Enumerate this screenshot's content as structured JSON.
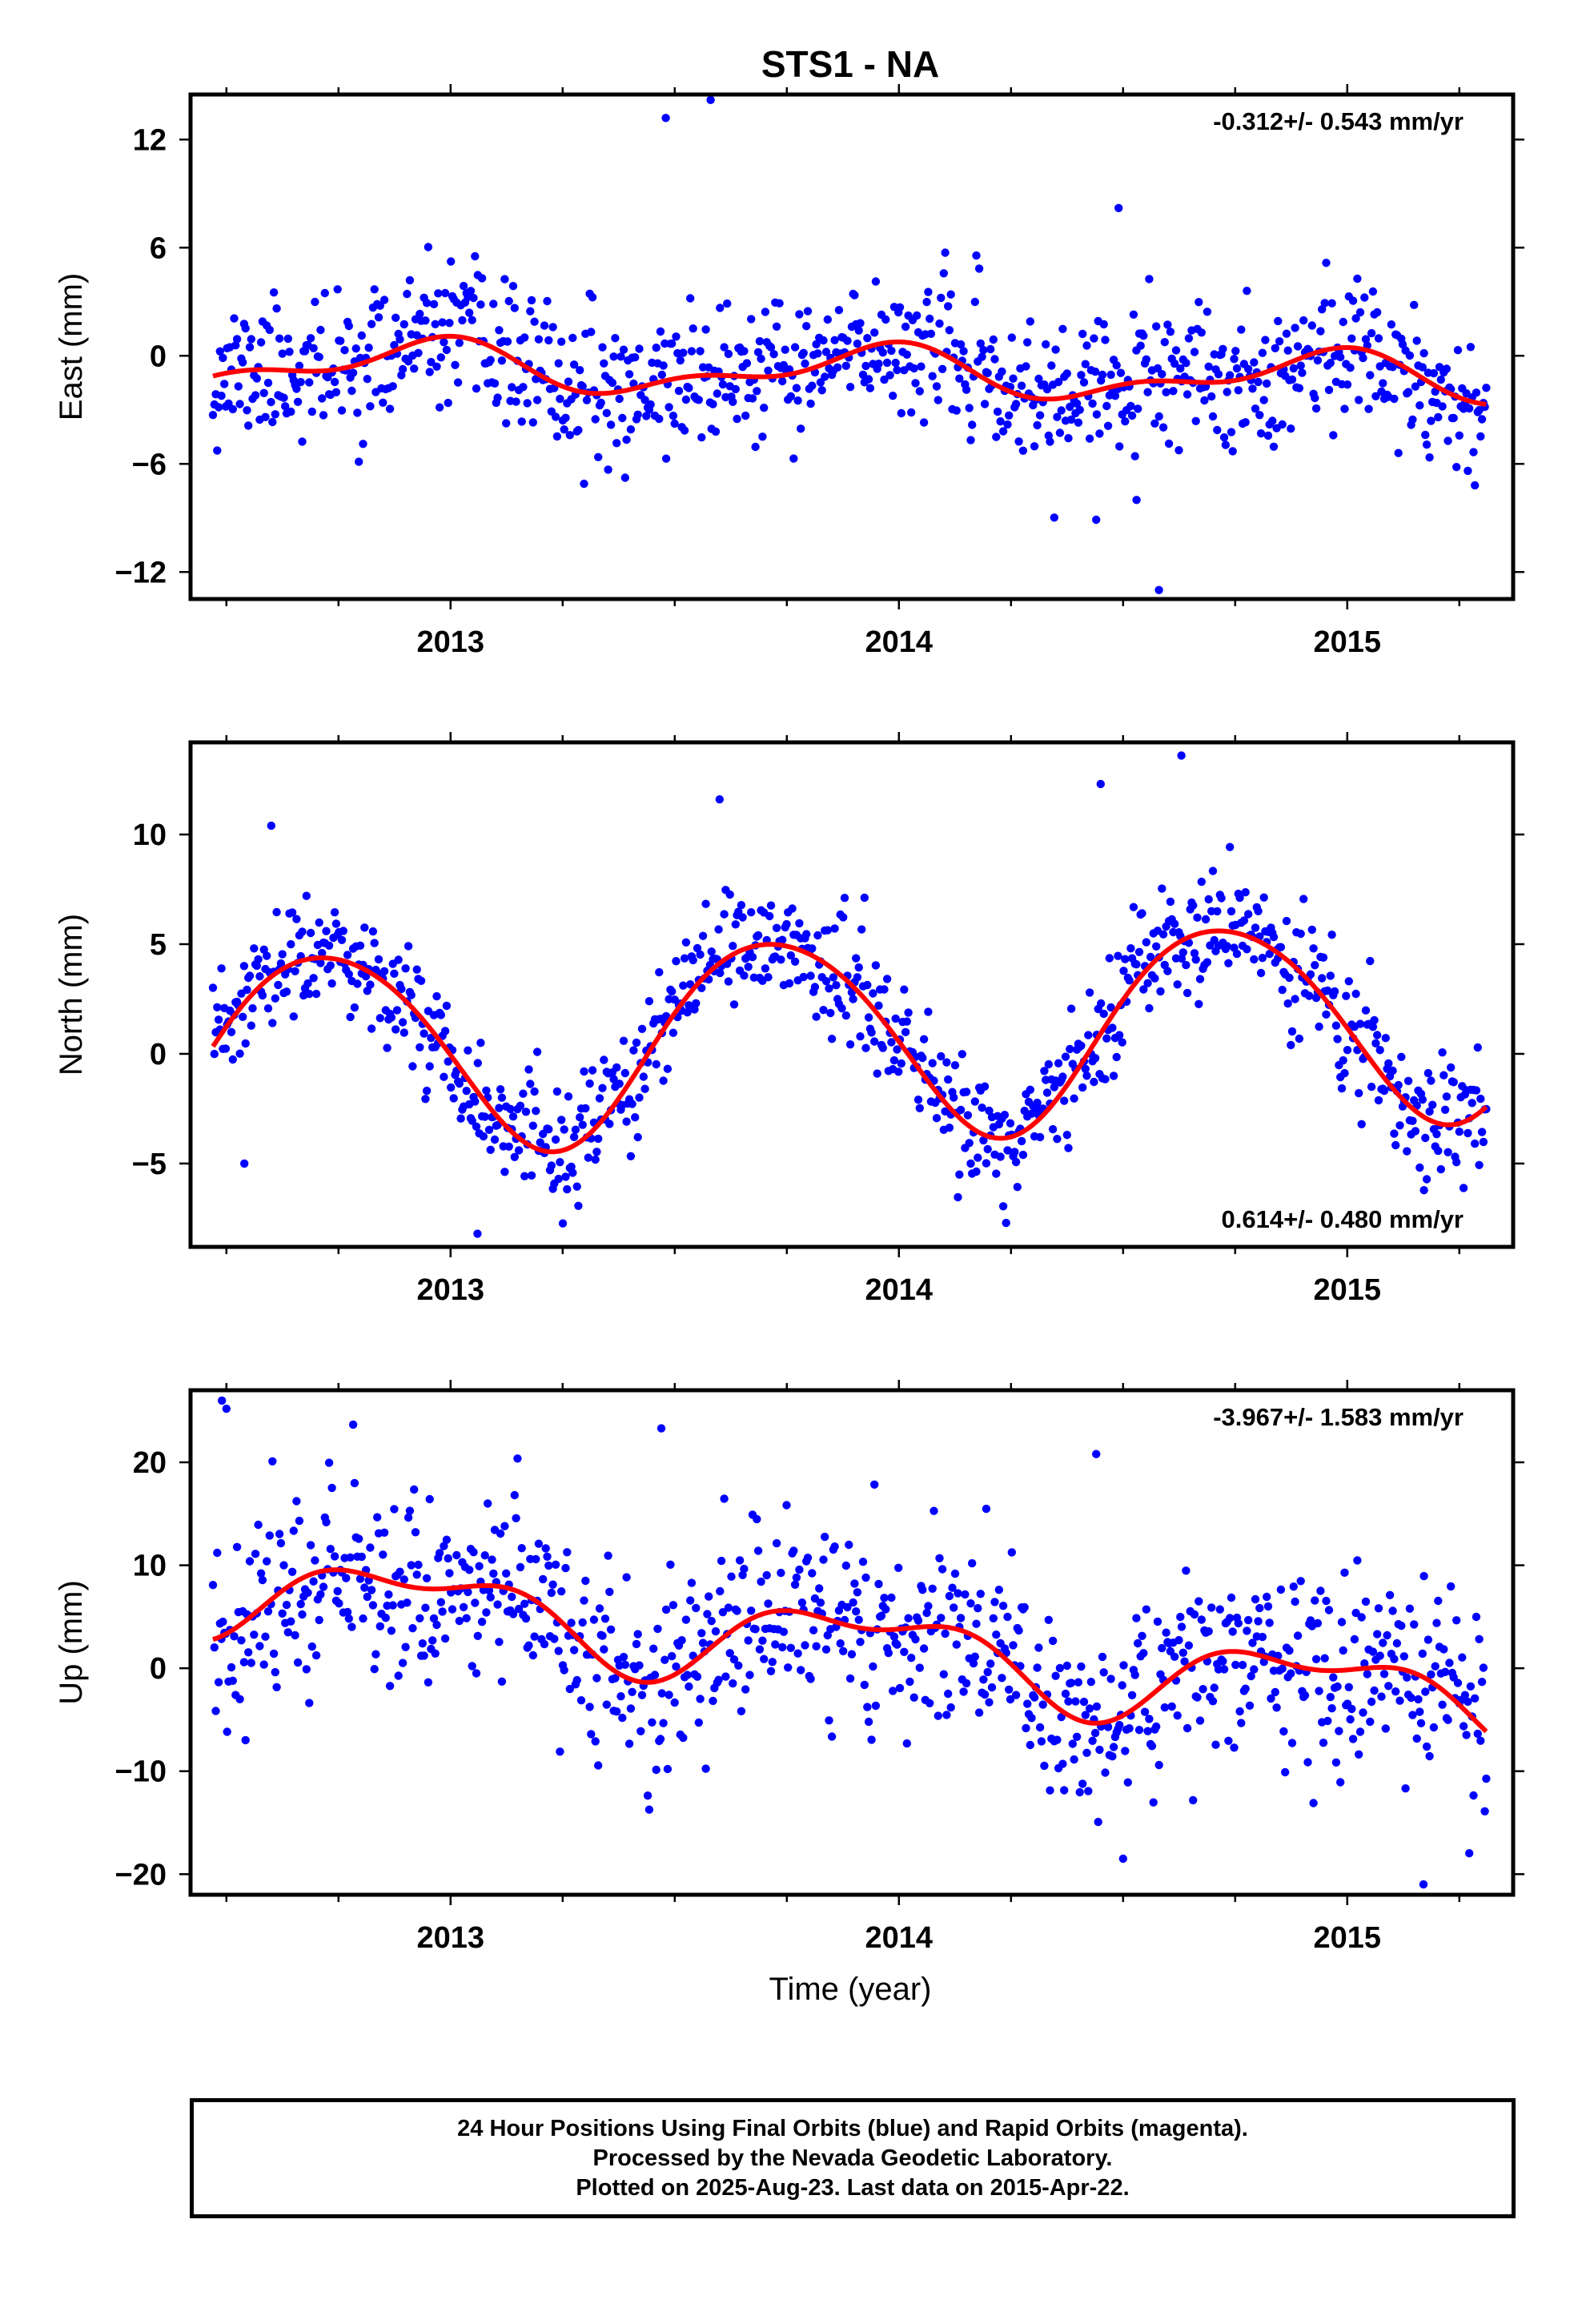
{
  "figure": {
    "title": "STS1 - NA",
    "xlabel": "Time (year)",
    "colors": {
      "points": "#0000ff",
      "fit": "#ff0000",
      "frame": "#000000"
    }
  },
  "chart_data": [
    {
      "type": "scatter",
      "panel": "east",
      "ylabel": "East (mm)",
      "rate_text": "-0.312+/- 0.543 mm/yr",
      "rate_position": "top-right",
      "xlim": [
        2012.42,
        2015.37
      ],
      "ylim": [
        -13.5,
        14.5
      ],
      "x_ticks": [
        "2013",
        "2014",
        "2015"
      ],
      "x_tick_values": [
        2013,
        2014,
        2015
      ],
      "y_ticks": [
        "12",
        "6",
        "0",
        "−6",
        "−12"
      ],
      "y_tick_values": [
        12,
        6,
        0,
        -6,
        -12
      ],
      "grid": false,
      "series": [
        {
          "style": "points",
          "seed": 11,
          "start": 2012.47,
          "end": 2015.31,
          "count": 900,
          "noise": 1.9,
          "components": {
            "offset": -0.9,
            "slope": -0.312,
            "annual_sin": -0.4,
            "annual_cos": 1.1,
            "semi_sin": 0.2,
            "semi_cos": 0.6
          },
          "outliers": [
            [
              2013.48,
              13.2
            ],
            [
              2013.58,
              14.2
            ],
            [
              2014.49,
              8.2
            ],
            [
              2014.58,
              -13.0
            ],
            [
              2014.53,
              -8.0
            ],
            [
              2014.44,
              -9.1
            ]
          ]
        },
        {
          "style": "line",
          "start": 2012.47,
          "end": 2015.31,
          "components": {
            "offset": -0.9,
            "slope": -0.312,
            "annual_sin": -0.4,
            "annual_cos": 1.1,
            "semi_sin": 0.2,
            "semi_cos": 0.6
          }
        }
      ]
    },
    {
      "type": "scatter",
      "panel": "north",
      "ylabel": "North (mm)",
      "rate_text": "0.614+/- 0.480 mm/yr",
      "rate_position": "bottom-right",
      "xlim": [
        2012.42,
        2015.37
      ],
      "ylim": [
        -8.8,
        14.2
      ],
      "x_ticks": [
        "2013",
        "2014",
        "2015"
      ],
      "x_tick_values": [
        2013,
        2014,
        2015
      ],
      "y_ticks": [
        "10",
        "5",
        "0",
        "−5"
      ],
      "y_tick_values": [
        10,
        5,
        0,
        -5
      ],
      "grid": false,
      "series": [
        {
          "style": "points",
          "seed": 23,
          "start": 2012.47,
          "end": 2015.31,
          "count": 900,
          "noise": 1.35,
          "components": {
            "offset": 0.9,
            "slope": 0.614,
            "annual_sin": -4.5,
            "annual_cos": -0.8,
            "semi_sin": 0.0,
            "semi_cos": 0.4
          },
          "outliers": [
            [
              2014.45,
              12.3
            ],
            [
              2014.63,
              13.6
            ],
            [
              2013.6,
              11.6
            ],
            [
              2012.6,
              10.4
            ],
            [
              2012.54,
              -5.0
            ],
            [
              2013.06,
              -8.2
            ]
          ]
        },
        {
          "style": "line",
          "start": 2012.47,
          "end": 2015.31,
          "components": {
            "offset": 0.9,
            "slope": 0.614,
            "annual_sin": -4.5,
            "annual_cos": -0.8,
            "semi_sin": 0.0,
            "semi_cos": 0.4
          }
        }
      ]
    },
    {
      "type": "scatter",
      "panel": "up",
      "ylabel": "Up (mm)",
      "rate_text": "-3.967+/- 1.583 mm/yr",
      "rate_position": "top-right",
      "xlim": [
        2012.42,
        2015.37
      ],
      "ylim": [
        -22,
        27
      ],
      "x_ticks": [
        "2013",
        "2014",
        "2015"
      ],
      "x_tick_values": [
        2013,
        2014,
        2015
      ],
      "y_ticks": [
        "20",
        "10",
        "0",
        "−10",
        "−20"
      ],
      "y_tick_values": [
        20,
        10,
        0,
        -10,
        -20
      ],
      "grid": false,
      "series": [
        {
          "style": "points",
          "seed": 37,
          "start": 2012.47,
          "end": 2015.31,
          "count": 900,
          "noise": 4.6,
          "components": {
            "offset": 2.2,
            "slope": -3.967,
            "annual_sin": -1.6,
            "annual_cos": 3.2,
            "semi_sin": 1.4,
            "semi_cos": -1.2
          },
          "outliers": [
            [
              2012.49,
              26.0
            ],
            [
              2012.5,
              25.2
            ],
            [
              2013.47,
              23.3
            ],
            [
              2014.44,
              20.8
            ],
            [
              2014.5,
              -18.5
            ],
            [
              2015.17,
              -21.0
            ]
          ]
        },
        {
          "style": "line",
          "start": 2012.47,
          "end": 2015.31,
          "components": {
            "offset": 2.2,
            "slope": -3.967,
            "annual_sin": -1.6,
            "annual_cos": 3.2,
            "semi_sin": 1.4,
            "semi_cos": -1.2
          }
        }
      ]
    }
  ],
  "footer": {
    "line1": "24 Hour Positions Using Final Orbits (blue) and Rapid Orbits (magenta).",
    "line2": "Processed by the Nevada Geodetic Laboratory.",
    "line3": "Plotted on 2025-Aug-23. Last data on 2015-Apr-22."
  }
}
